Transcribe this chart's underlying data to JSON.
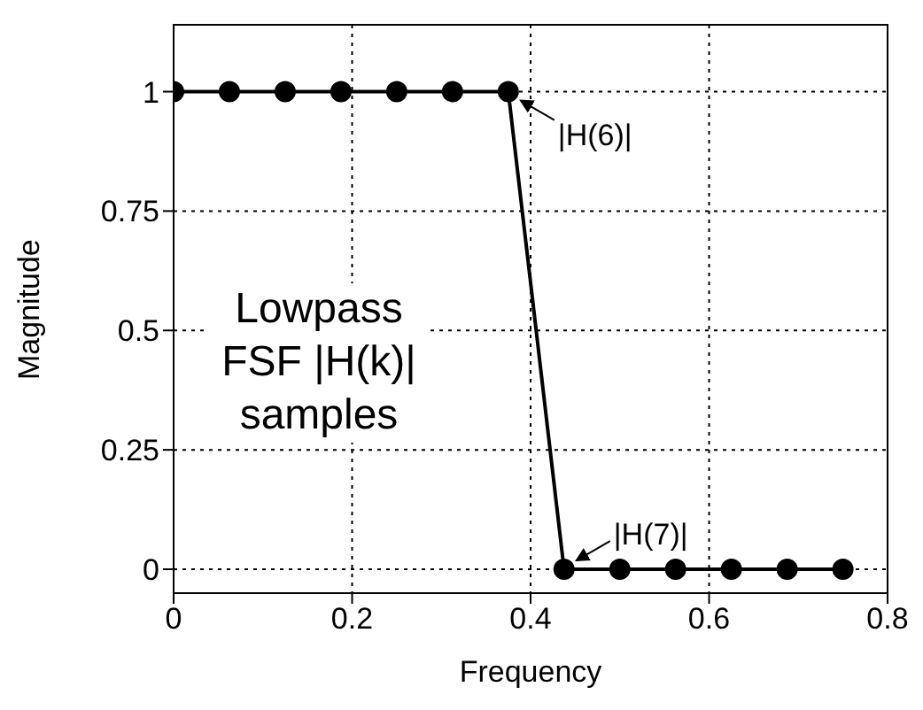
{
  "chart_data": {
    "type": "line",
    "xlabel": "Frequency",
    "ylabel": "Magnitude",
    "x": [
      0,
      0.0625,
      0.125,
      0.1875,
      0.25,
      0.3125,
      0.375,
      0.4375,
      0.5,
      0.5625,
      0.625,
      0.6875,
      0.75
    ],
    "series": [
      {
        "color": "#000000",
        "values": [
          1,
          1,
          1,
          1,
          1,
          1,
          1,
          0,
          0,
          0,
          0,
          0,
          0
        ]
      }
    ],
    "xlim": [
      0,
      0.8
    ],
    "xticks": [
      0,
      0.2,
      0.4,
      0.6,
      0.8
    ],
    "ylim": [
      -0.05,
      1.14
    ],
    "yticks": [
      0,
      0.25,
      0.5,
      0.75,
      1
    ],
    "grid": true,
    "marker": "circle",
    "line_style": "solid",
    "legend": false,
    "annotations": [
      {
        "text": "|H(6)|",
        "x": 0.375,
        "y": 1
      },
      {
        "text": "|H(7)|",
        "x": 0.4375,
        "y": 0
      },
      "Lowpass FSF |H(k)| samples"
    ]
  }
}
